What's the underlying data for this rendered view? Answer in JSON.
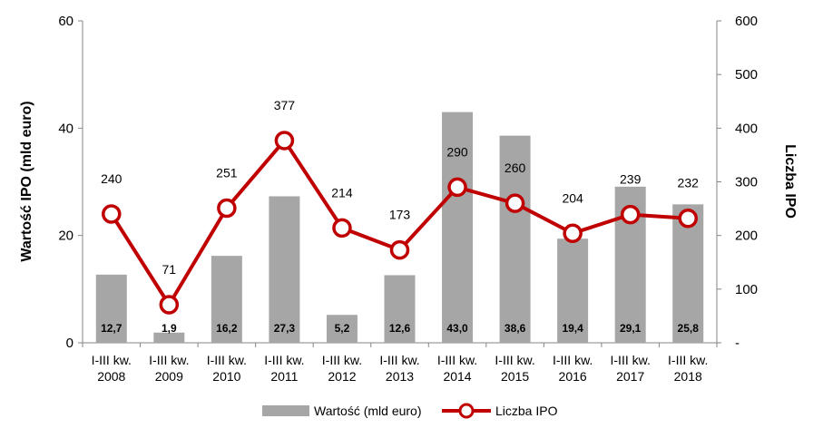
{
  "chart_data": {
    "type": "bar",
    "categories": [
      [
        "I-III kw.",
        "2008"
      ],
      [
        "I-III kw.",
        "2009"
      ],
      [
        "I-III kw.",
        "2010"
      ],
      [
        "I-III kw.",
        "2011"
      ],
      [
        "I-III kw.",
        "2012"
      ],
      [
        "I-III kw.",
        "2013"
      ],
      [
        "I-III kw.",
        "2014"
      ],
      [
        "I-III kw.",
        "2015"
      ],
      [
        "I-III kw.",
        "2016"
      ],
      [
        "I-III kw.",
        "2017"
      ],
      [
        "I-III kw.",
        "2018"
      ]
    ],
    "series": [
      {
        "name": "Wartość (mld euro)",
        "type": "bar",
        "axis": "left",
        "color": "#a6a6a6",
        "values": [
          12.7,
          1.9,
          16.2,
          27.3,
          5.2,
          12.6,
          43.0,
          38.6,
          19.4,
          29.1,
          25.8
        ],
        "labels": [
          "12,7",
          "1,9",
          "16,2",
          "27,3",
          "5,2",
          "12,6",
          "43,0",
          "38,6",
          "19,4",
          "29,1",
          "25,8"
        ]
      },
      {
        "name": "Liczba IPO",
        "type": "line",
        "axis": "right",
        "color": "#c00000",
        "values": [
          240,
          71,
          251,
          377,
          214,
          173,
          290,
          260,
          204,
          239,
          232
        ],
        "labels": [
          "240",
          "71",
          "251",
          "377",
          "214",
          "173",
          "290",
          "260",
          "204",
          "239",
          "232"
        ]
      }
    ],
    "ylabel": "Wartość IPO (mld euro)",
    "ylabel_right": "Liczba IPO",
    "ylim": [
      0,
      60
    ],
    "ylim_right": [
      0,
      600
    ],
    "yticks": [
      "0",
      "20",
      "40",
      "60"
    ],
    "yticks_right": [
      "-",
      "100",
      "200",
      "300",
      "400",
      "500",
      "600"
    ],
    "grid": false,
    "legend": "bottom"
  }
}
